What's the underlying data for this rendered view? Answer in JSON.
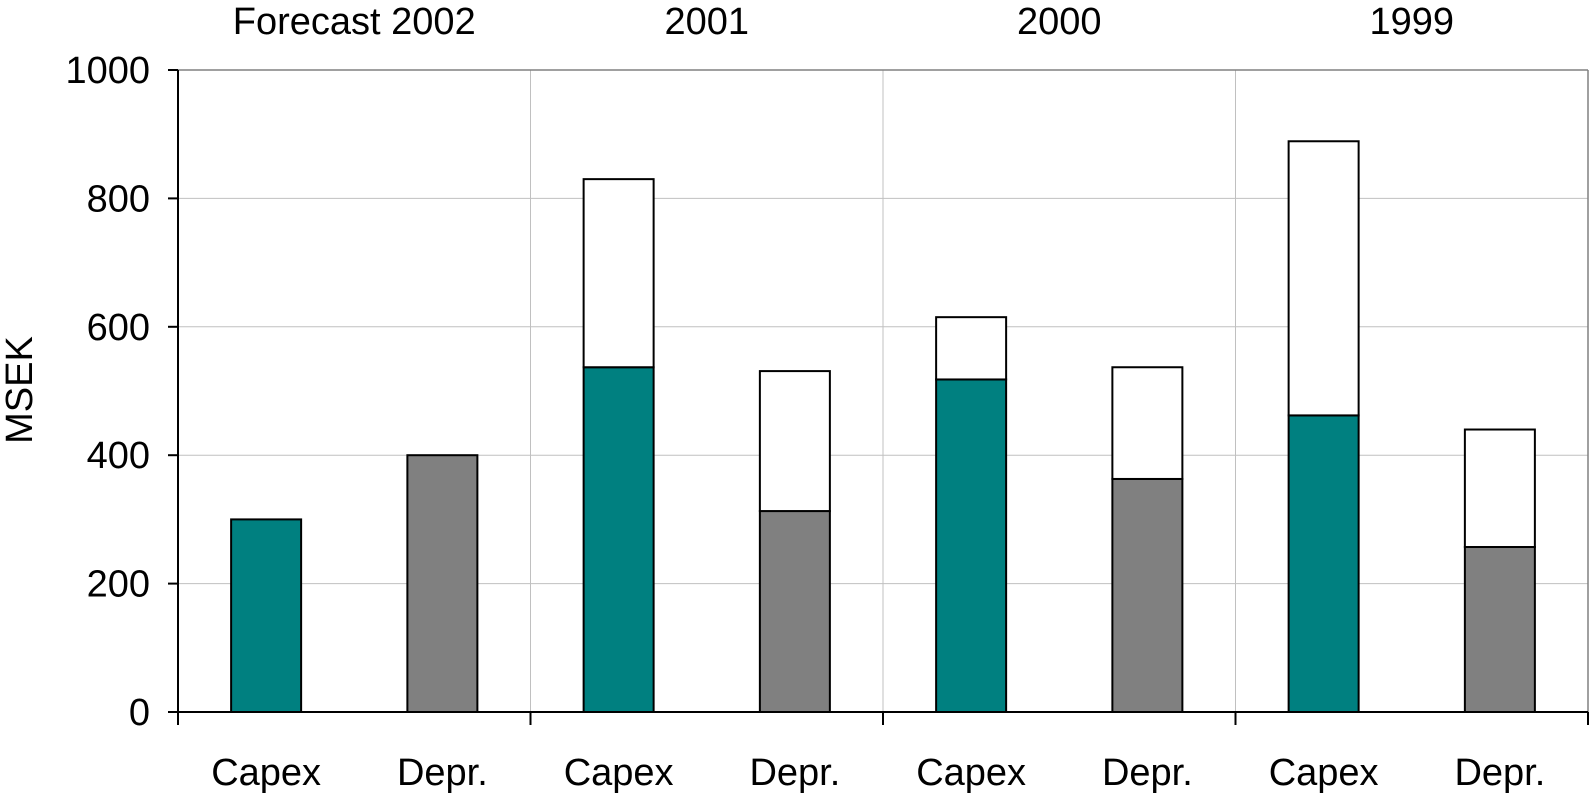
{
  "chart_data": {
    "type": "bar",
    "stacked": true,
    "ylabel": "MSEK",
    "ylim": [
      0,
      1000
    ],
    "yticks": [
      0,
      200,
      400,
      600,
      800,
      1000
    ],
    "grid": true,
    "legend": "none",
    "groups": [
      "Forecast 2002",
      "2001",
      "2000",
      "1999"
    ],
    "categories": [
      "Capex",
      "Depr.",
      "Capex",
      "Depr.",
      "Capex",
      "Depr.",
      "Capex",
      "Depr."
    ],
    "series": [
      {
        "values": [
          300,
          400,
          537,
          313,
          518,
          363,
          462,
          257
        ]
      },
      {
        "values": [
          0,
          0,
          293,
          218,
          97,
          174,
          427,
          183
        ]
      }
    ],
    "colors": {
      "capex": "#008080",
      "depr": "#808080",
      "top": "#ffffff",
      "grid": "#c0c0c0",
      "axis": "#000000",
      "frame": "#808080"
    }
  }
}
